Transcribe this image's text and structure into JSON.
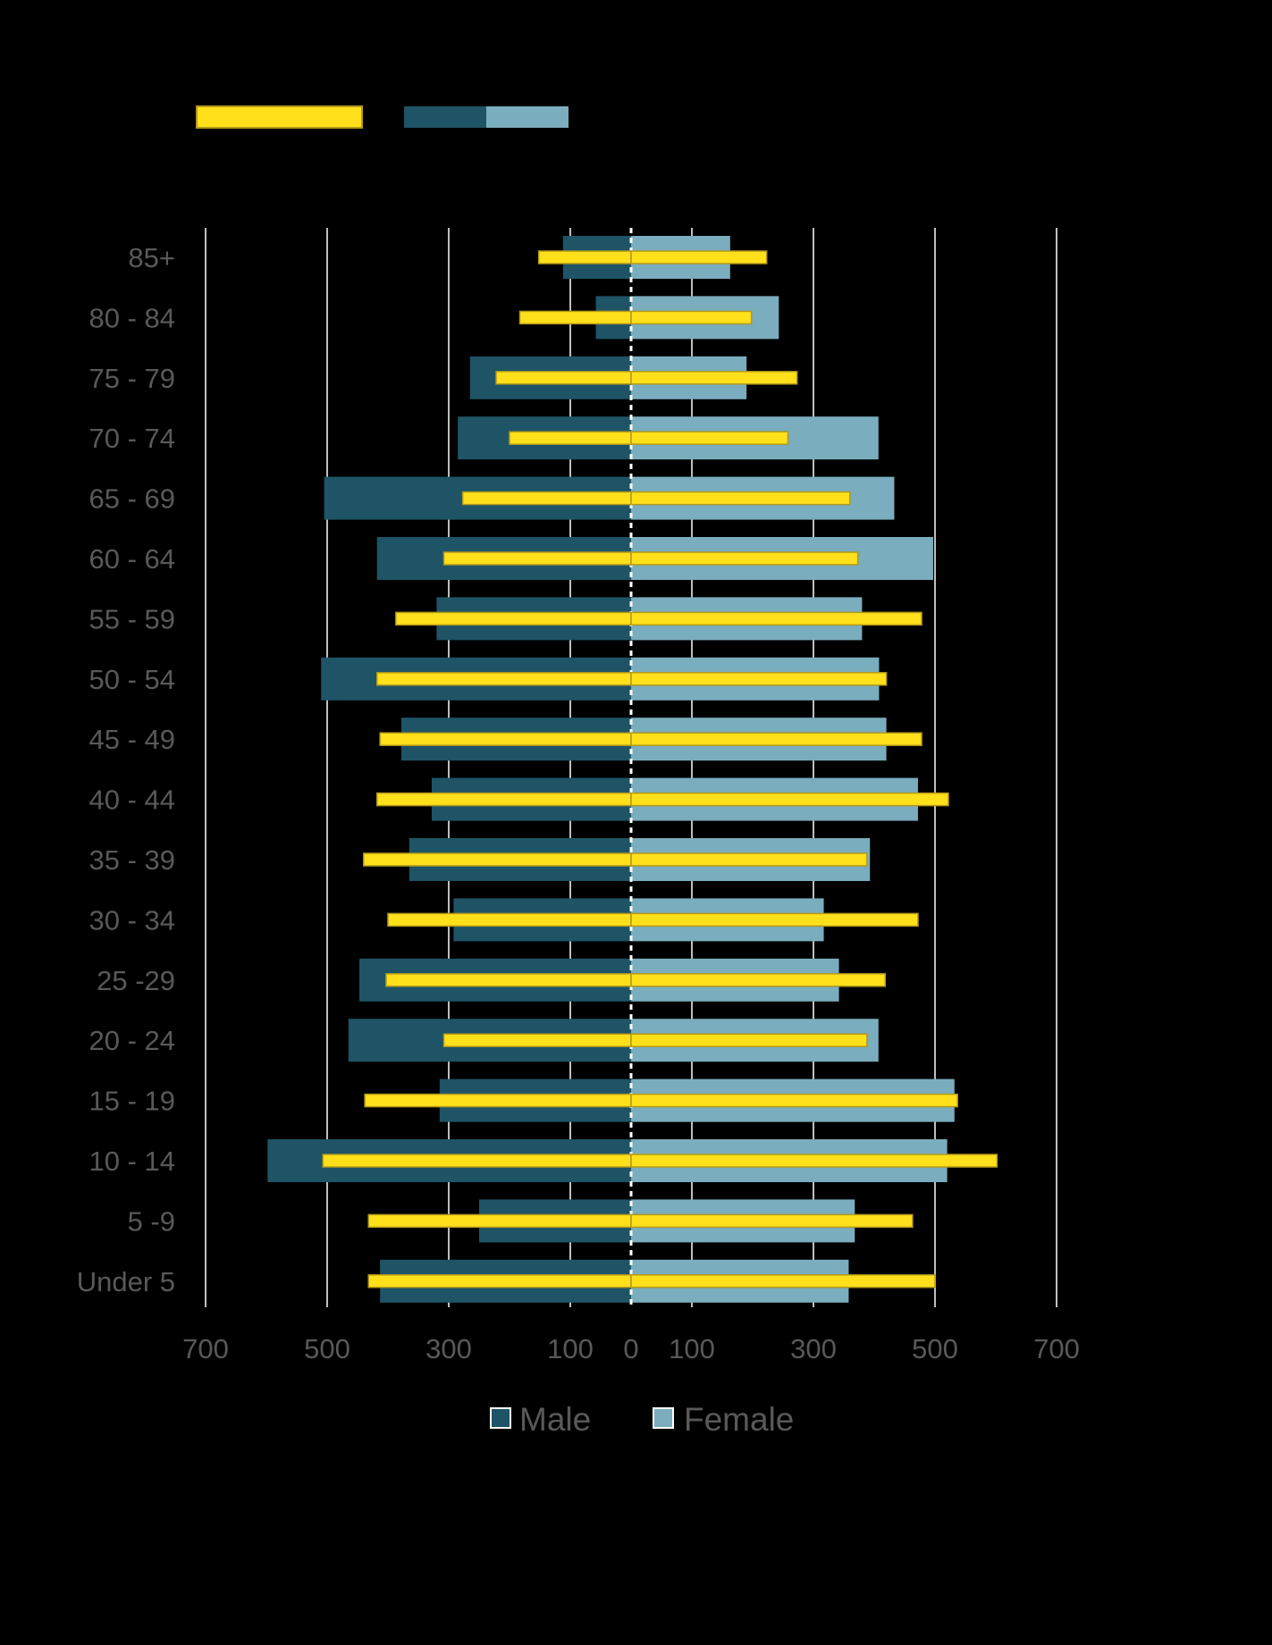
{
  "chart_data": {
    "type": "bar",
    "orientation": "horizontal-pyramid",
    "categories": [
      "85+",
      "80 - 84",
      "75 - 79",
      "70 - 74",
      "65 - 69",
      "60 - 64",
      "55 - 59",
      "50 - 54",
      "45 - 49",
      "40 - 44",
      "35 - 39",
      "30 - 34",
      "25 -29",
      "20 - 24",
      "15 - 19",
      "10 - 14",
      "5 -9",
      "Under 5"
    ],
    "series": [
      {
        "name": "Male",
        "side": "left",
        "values": [
          112,
          58,
          265,
          285,
          505,
          418,
          320,
          510,
          378,
          328,
          365,
          292,
          447,
          465,
          315,
          598,
          250,
          413
        ]
      },
      {
        "name": "Female",
        "side": "right",
        "values": [
          163,
          243,
          190,
          407,
          433,
          497,
          380,
          408,
          420,
          472,
          393,
          317,
          342,
          407,
          532,
          520,
          368,
          358
        ]
      }
    ],
    "overlay": {
      "values_left": [
        152,
        183,
        222,
        200,
        277,
        308,
        387,
        418,
        413,
        418,
        440,
        400,
        403,
        308,
        438,
        507,
        432,
        432
      ],
      "values_right": [
        223,
        198,
        273,
        258,
        360,
        373,
        478,
        420,
        478,
        522,
        388,
        472,
        418,
        388,
        537,
        602,
        463,
        500
      ]
    },
    "x_ticks": [
      {
        "label": "700",
        "value": -700
      },
      {
        "label": "500",
        "value": -500
      },
      {
        "label": "300",
        "value": -300
      },
      {
        "label": "100",
        "value": -100
      },
      {
        "label": "0",
        "value": 0
      },
      {
        "label": "100",
        "value": 100
      },
      {
        "label": "300",
        "value": 300
      },
      {
        "label": "500",
        "value": 500
      },
      {
        "label": "700",
        "value": 700
      }
    ],
    "xlim": [
      -700,
      700
    ],
    "grid": true,
    "legend_placement": "bottom",
    "legend": [
      {
        "name": "Male",
        "color": "#1e5466"
      },
      {
        "name": "Female",
        "color": "#7aadbd"
      }
    ],
    "colors": {
      "male": "#1e5466",
      "female": "#7aadbd",
      "overlay": "#ffe01a",
      "overlay_border": "#b3991a",
      "grid": "#bfbfbf",
      "axis": "#ffffff",
      "text": "#595959"
    }
  }
}
